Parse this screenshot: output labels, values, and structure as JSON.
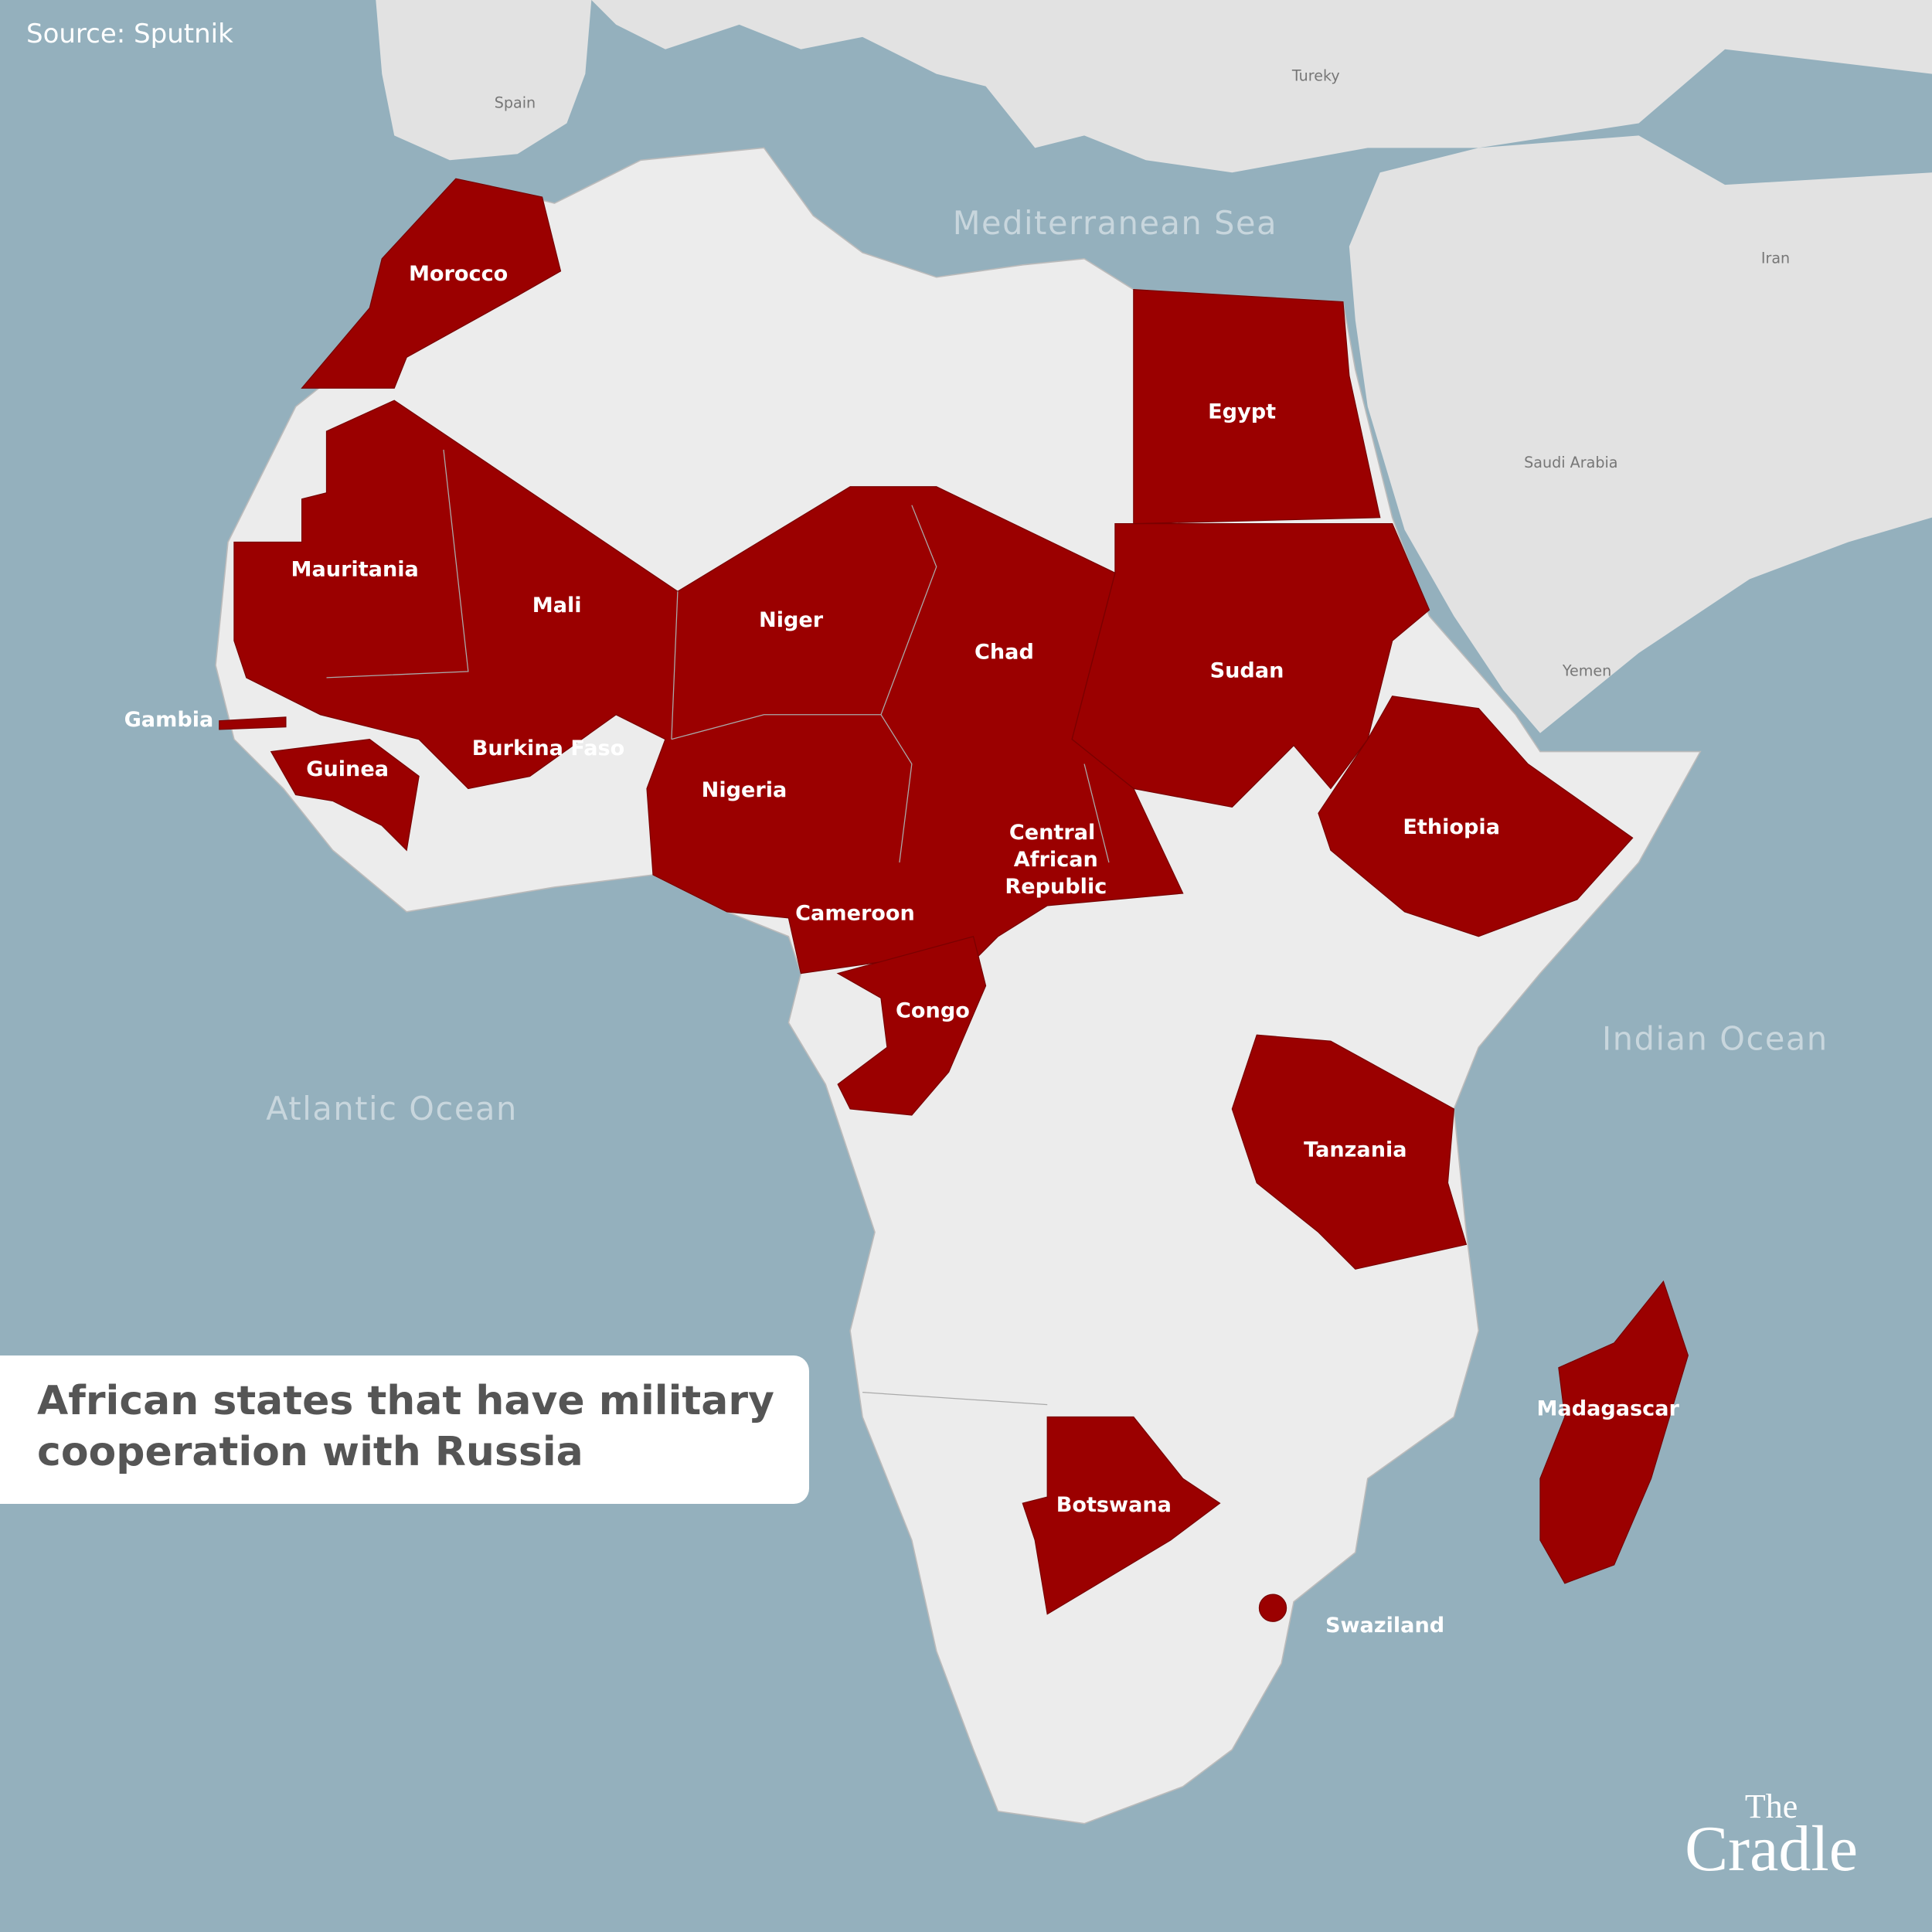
{
  "source": "Source: Sputnik",
  "title": "African states that have military cooperation with Russia",
  "brand": {
    "line1": "The",
    "line2": "Cradle"
  },
  "water_labels": [
    "Mediterranean Sea",
    "Atlantic Ocean",
    "Indian Ocean"
  ],
  "other_labels": [
    "Spain",
    "Tureky",
    "Iran",
    "Saudi Arabia",
    "Yemen"
  ],
  "countries": [
    "Morocco",
    "Egypt",
    "Mauritania",
    "Mali",
    "Niger",
    "Chad",
    "Sudan",
    "Gambia",
    "Burkina Faso",
    "Guinea",
    "Nigeria",
    "Ethiopia",
    "Central African Republic",
    "Cameroon",
    "Congo",
    "Tanzania",
    "Madagascar",
    "Botswana",
    "Swaziland"
  ]
}
